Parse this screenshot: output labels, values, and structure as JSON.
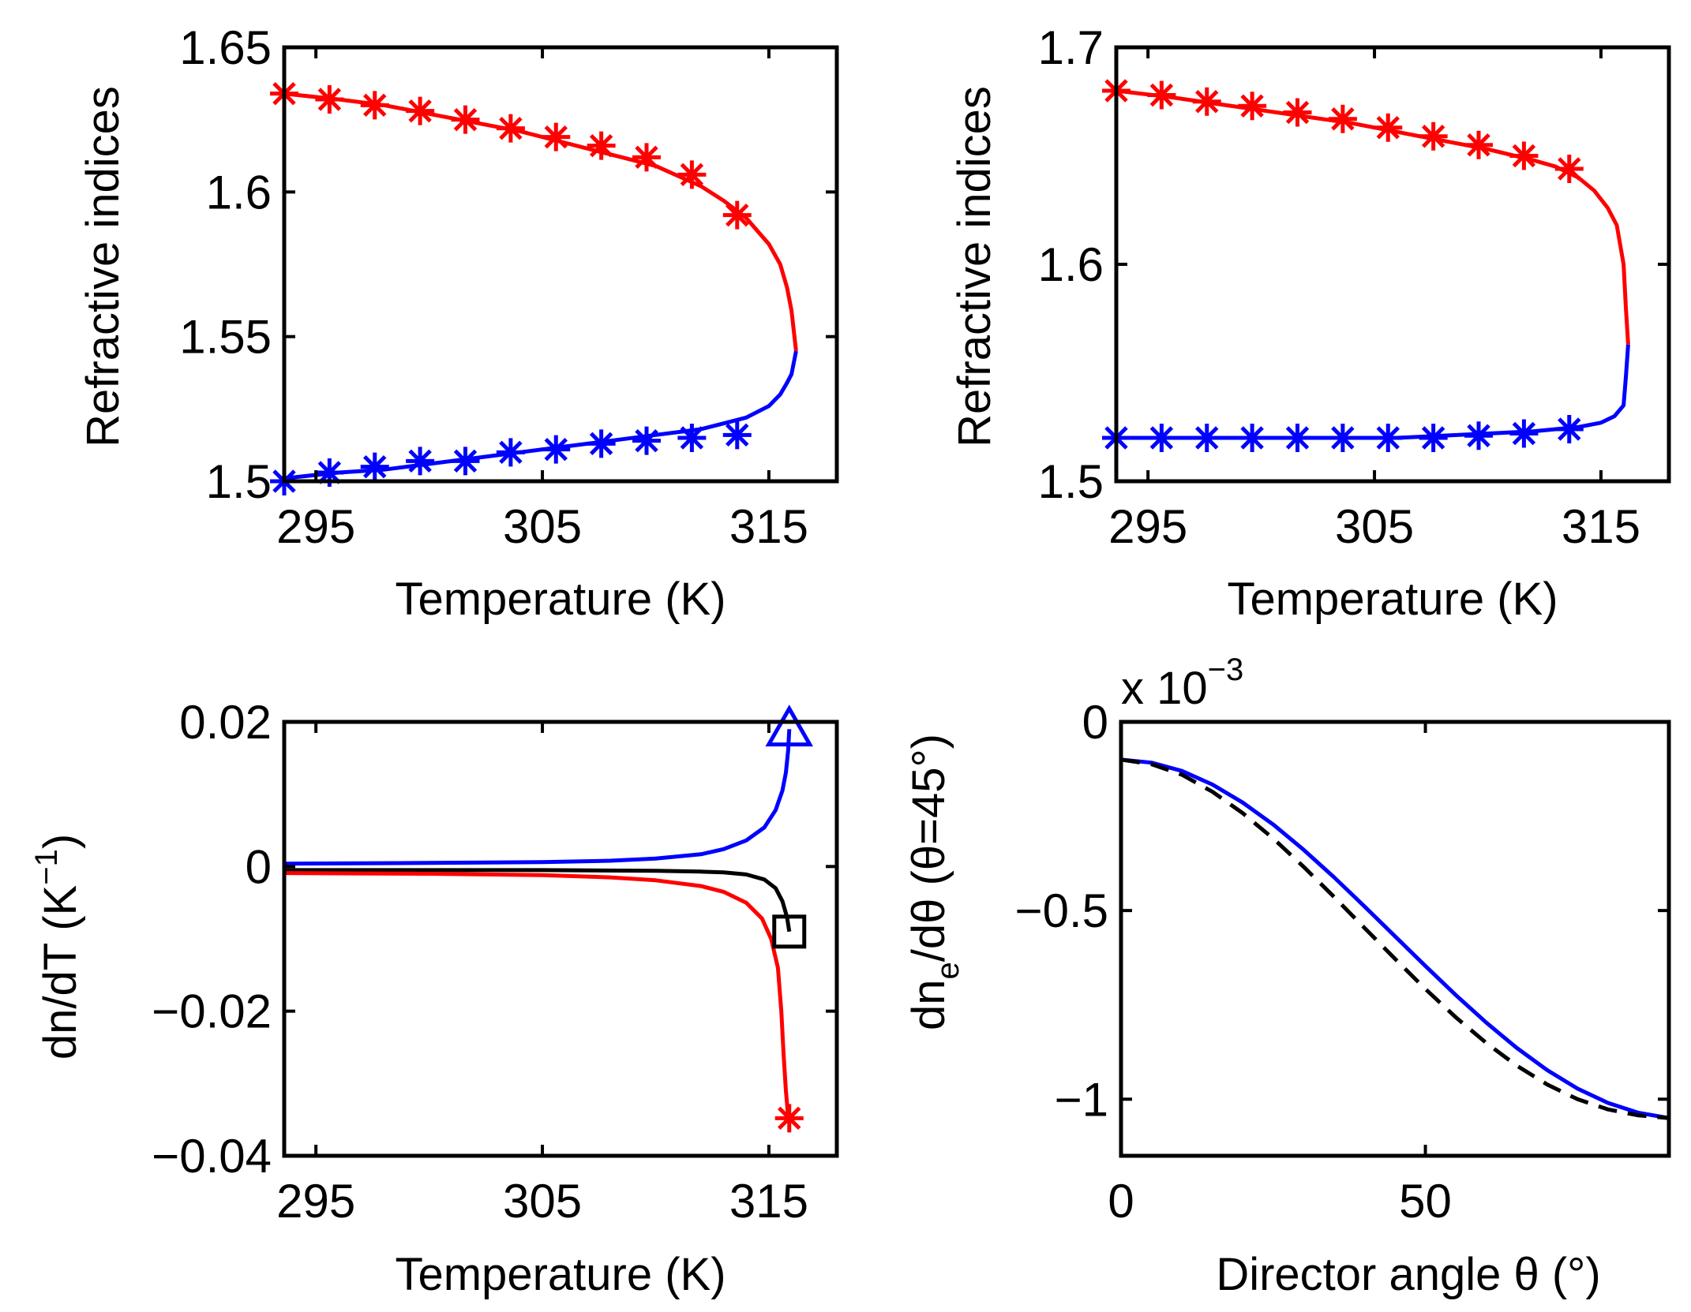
{
  "colors": {
    "no": "#ff0000",
    "ne": "#0000ff",
    "third": "#000000",
    "ref": "#000000"
  },
  "chart_data": [
    {
      "id": "tl",
      "type": "line",
      "xlabel": "Temperature (K)",
      "ylabel": "Refractive indices",
      "xlim": [
        293.6,
        318.0
      ],
      "ylim": [
        1.5,
        1.65
      ],
      "xticks": [
        295,
        305,
        315
      ],
      "yticks": [
        1.5,
        1.55,
        1.6,
        1.65
      ],
      "xtick_labels": [
        "295",
        "305",
        "315"
      ],
      "ytick_labels": [
        "1.5",
        "1.55",
        "1.6",
        "1.65"
      ],
      "series": [
        {
          "color": "no",
          "style": "solid",
          "x": [
            293.6,
            296,
            298,
            300,
            302,
            304,
            306,
            308,
            310,
            312,
            313,
            314,
            315,
            315.5,
            315.8,
            316.0,
            316.1,
            316.2
          ],
          "y": [
            1.634,
            1.632,
            1.63,
            1.627,
            1.624,
            1.621,
            1.617,
            1.613,
            1.609,
            1.602,
            1.597,
            1.591,
            1.582,
            1.575,
            1.567,
            1.559,
            1.552,
            1.545
          ]
        },
        {
          "color": "ne",
          "style": "solid",
          "x": [
            293.6,
            296,
            298,
            300,
            302,
            304,
            306,
            308,
            310,
            312,
            313,
            314,
            315,
            315.5,
            315.8,
            316.0,
            316.1,
            316.2
          ],
          "y": [
            1.501,
            1.503,
            1.504,
            1.506,
            1.508,
            1.51,
            1.512,
            1.514,
            1.516,
            1.518,
            1.52,
            1.522,
            1.526,
            1.53,
            1.534,
            1.537,
            1.541,
            1.545
          ]
        },
        {
          "color": "no",
          "style": "markers",
          "marker": "star",
          "x": [
            293.6,
            295.6,
            297.6,
            299.6,
            301.6,
            303.6,
            305.6,
            307.6,
            309.6,
            311.6,
            313.6
          ],
          "y": [
            1.634,
            1.632,
            1.63,
            1.628,
            1.625,
            1.622,
            1.619,
            1.616,
            1.612,
            1.606,
            1.592
          ]
        },
        {
          "color": "ne",
          "style": "markers",
          "marker": "star",
          "x": [
            293.6,
            295.6,
            297.6,
            299.6,
            301.6,
            303.6,
            305.6,
            307.6,
            309.6,
            311.6,
            313.6
          ],
          "y": [
            1.5,
            1.503,
            1.505,
            1.507,
            1.507,
            1.51,
            1.511,
            1.513,
            1.514,
            1.515,
            1.516
          ]
        }
      ]
    },
    {
      "id": "tr",
      "type": "line",
      "xlabel": "Temperature (K)",
      "ylabel": "Refractive indices",
      "xlim": [
        293.6,
        318.0
      ],
      "ylim": [
        1.5,
        1.7
      ],
      "xticks": [
        295,
        305,
        315
      ],
      "yticks": [
        1.5,
        1.6,
        1.7
      ],
      "xtick_labels": [
        "295",
        "305",
        "315"
      ],
      "ytick_labels": [
        "1.5",
        "1.6",
        "1.7"
      ],
      "series": [
        {
          "color": "no",
          "style": "solid",
          "x": [
            293.6,
            296,
            298,
            300,
            302,
            304,
            306,
            308,
            310,
            312,
            313,
            314,
            314.7,
            315.3,
            315.7,
            316.0,
            316.1,
            316.2
          ],
          "y": [
            1.68,
            1.677,
            1.674,
            1.671,
            1.668,
            1.665,
            1.661,
            1.657,
            1.653,
            1.648,
            1.645,
            1.64,
            1.634,
            1.626,
            1.618,
            1.6,
            1.58,
            1.563
          ]
        },
        {
          "color": "ne",
          "style": "solid",
          "x": [
            293.6,
            296,
            298,
            300,
            302,
            304,
            306,
            308,
            310,
            312,
            313,
            314,
            315,
            315.6,
            316.0,
            316.1,
            316.2
          ],
          "y": [
            1.52,
            1.52,
            1.52,
            1.52,
            1.52,
            1.52,
            1.52,
            1.521,
            1.522,
            1.523,
            1.524,
            1.525,
            1.527,
            1.53,
            1.535,
            1.548,
            1.563
          ]
        },
        {
          "color": "no",
          "style": "markers",
          "marker": "star",
          "x": [
            293.6,
            295.6,
            297.6,
            299.6,
            301.6,
            303.6,
            305.6,
            307.6,
            309.6,
            311.6,
            313.6
          ],
          "y": [
            1.68,
            1.678,
            1.675,
            1.673,
            1.67,
            1.667,
            1.663,
            1.659,
            1.655,
            1.65,
            1.644
          ]
        },
        {
          "color": "ne",
          "style": "markers",
          "marker": "star",
          "x": [
            293.6,
            295.6,
            297.6,
            299.6,
            301.6,
            303.6,
            305.6,
            307.6,
            309.6,
            311.6,
            313.6
          ],
          "y": [
            1.52,
            1.52,
            1.52,
            1.52,
            1.52,
            1.52,
            1.52,
            1.52,
            1.521,
            1.522,
            1.524
          ]
        }
      ]
    },
    {
      "id": "bl",
      "type": "line",
      "xlabel": "Temperature (K)",
      "ylabel": "dn/dT (K",
      "ylabel_sup": "−1",
      "ylabel_tail": ")",
      "xlim": [
        293.6,
        318.0
      ],
      "ylim": [
        -0.04,
        0.02
      ],
      "xticks": [
        295,
        305,
        315
      ],
      "yticks": [
        -0.04,
        -0.02,
        0,
        0.02
      ],
      "xtick_labels": [
        "295",
        "305",
        "315"
      ],
      "ytick_labels": [
        "−0.04",
        "−0.02",
        "0",
        "0.02"
      ],
      "series": [
        {
          "color": "ne",
          "style": "solid",
          "x": [
            293.6,
            300,
            305,
            308,
            310,
            312,
            313,
            314,
            314.8,
            315.3,
            315.6,
            315.75,
            315.85,
            315.9
          ],
          "y": [
            0.0004,
            0.0005,
            0.0006,
            0.0008,
            0.0011,
            0.0017,
            0.0024,
            0.0036,
            0.0054,
            0.0078,
            0.0105,
            0.013,
            0.016,
            0.019
          ]
        },
        {
          "color": "third",
          "style": "solid",
          "x": [
            293.6,
            300,
            305,
            310,
            312,
            313,
            314,
            314.8,
            315.3,
            315.6,
            315.8,
            315.9
          ],
          "y": [
            -0.0005,
            -0.0005,
            -0.0005,
            -0.0006,
            -0.0007,
            -0.0008,
            -0.0011,
            -0.0018,
            -0.003,
            -0.0048,
            -0.007,
            -0.009
          ]
        },
        {
          "color": "no",
          "style": "solid",
          "x": [
            293.6,
            300,
            305,
            308,
            310,
            312,
            313,
            314,
            314.7,
            315.1,
            315.4,
            315.55,
            315.65,
            315.75,
            315.85
          ],
          "y": [
            -0.0009,
            -0.001,
            -0.0012,
            -0.0015,
            -0.0019,
            -0.0027,
            -0.0035,
            -0.005,
            -0.0072,
            -0.01,
            -0.014,
            -0.02,
            -0.026,
            -0.031,
            -0.0345
          ]
        },
        {
          "color": "ne",
          "style": "markers",
          "marker": "triangle",
          "x": [
            315.9
          ],
          "y": [
            0.019
          ]
        },
        {
          "color": "third",
          "style": "markers",
          "marker": "square",
          "x": [
            315.9
          ],
          "y": [
            -0.009
          ]
        },
        {
          "color": "no",
          "style": "markers",
          "marker": "star",
          "x": [
            315.9
          ],
          "y": [
            -0.0348
          ]
        }
      ]
    },
    {
      "id": "br",
      "type": "line",
      "xlabel": "Director angle θ (°)",
      "ylabel": "dn",
      "ylabel_sub": "e",
      "ylabel_tail": "/dθ (θ=45°)",
      "multiplier": "x 10",
      "multiplier_exp": "−3",
      "xlim": [
        0,
        90
      ],
      "ylim": [
        -1.15,
        0
      ],
      "xticks": [
        0,
        50
      ],
      "yticks": [
        -1,
        -0.5,
        0
      ],
      "xtick_labels": [
        "0",
        "50"
      ],
      "ytick_labels": [
        "−1",
        "−0.5",
        "0"
      ],
      "series": [
        {
          "color": "ne",
          "style": "solid",
          "x": [
            0,
            5,
            10,
            15,
            20,
            25,
            30,
            35,
            40,
            45,
            50,
            55,
            60,
            65,
            70,
            75,
            80,
            85,
            90
          ],
          "y": [
            -0.1,
            -0.108,
            -0.13,
            -0.166,
            -0.214,
            -0.272,
            -0.339,
            -0.412,
            -0.489,
            -0.568,
            -0.647,
            -0.724,
            -0.797,
            -0.864,
            -0.923,
            -0.972,
            -1.01,
            -1.036,
            -1.05
          ]
        },
        {
          "color": "ref",
          "style": "dashed",
          "x": [
            0,
            5,
            10,
            15,
            20,
            25,
            30,
            35,
            40,
            45,
            50,
            55,
            60,
            65,
            70,
            75,
            80,
            85,
            90
          ],
          "y": [
            -0.1,
            -0.112,
            -0.14,
            -0.185,
            -0.242,
            -0.309,
            -0.384,
            -0.464,
            -0.546,
            -0.628,
            -0.708,
            -0.783,
            -0.851,
            -0.911,
            -0.961,
            -1.0,
            -1.027,
            -1.043,
            -1.05
          ]
        }
      ]
    }
  ]
}
